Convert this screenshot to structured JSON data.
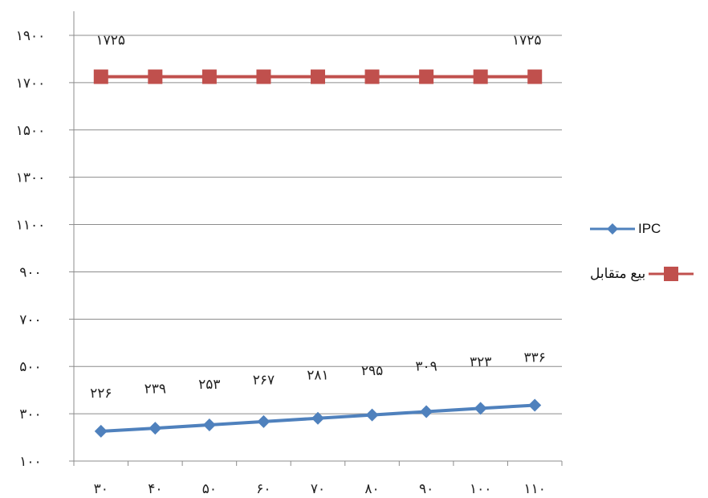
{
  "chart_data": {
    "type": "line",
    "categories": [
      "۳۰",
      "۴۰",
      "۵۰",
      "۶۰",
      "۷۰",
      "۸۰",
      "۹۰",
      "۱۰۰",
      "۱۱۰"
    ],
    "y_ticks": [
      "۱۰۰",
      "۳۰۰",
      "۵۰۰",
      "۷۰۰",
      "۹۰۰",
      "۱۱۰۰",
      "۱۳۰۰",
      "۱۵۰۰",
      "۱۷۰۰",
      "۱۹۰۰"
    ],
    "ylim": [
      100,
      1900
    ],
    "grid": "horizontal",
    "legend_position": "right",
    "series": [
      {
        "name": "IPC",
        "color": "#4f81bd",
        "marker": "diamond",
        "values": [
          226,
          239,
          253,
          267,
          281,
          295,
          309,
          323,
          336
        ],
        "labels": [
          "۲۲۶",
          "۲۳۹",
          "۲۵۳",
          "۲۶۷",
          "۲۸۱",
          "۲۹۵",
          "۳۰۹",
          "۳۲۳",
          "۳۳۶"
        ]
      },
      {
        "name": "بیع متقابل",
        "color": "#c0504d",
        "marker": "square",
        "values": [
          1725,
          1725,
          1725,
          1725,
          1725,
          1725,
          1725,
          1725,
          1725
        ],
        "labels": [
          "۱۷۲۵",
          "",
          "",
          "",
          "",
          "",
          "",
          "",
          "۱۷۲۵"
        ]
      }
    ]
  },
  "legend": {
    "ipc_label": "IPC",
    "bey_label": "بیع متقابل"
  }
}
